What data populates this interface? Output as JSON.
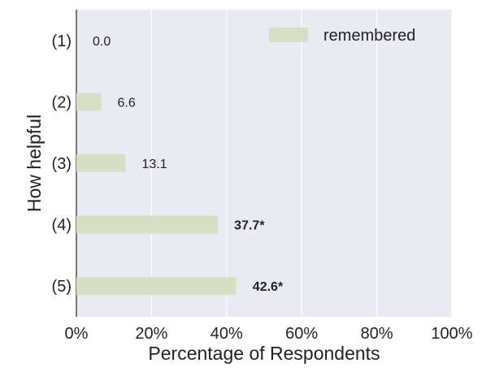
{
  "chart_data": {
    "type": "bar",
    "orientation": "horizontal",
    "categories": [
      "(1)",
      "(2)",
      "(3)",
      "(4)",
      "(5)"
    ],
    "series": [
      {
        "name": "remembered",
        "values": [
          0.0,
          6.6,
          13.1,
          37.7,
          42.6
        ],
        "labels": [
          "0.0",
          "6.6",
          "13.1",
          "37.7*",
          "42.6*"
        ],
        "bold": [
          false,
          false,
          false,
          true,
          true
        ]
      }
    ],
    "xlabel": "Percentage of Respondents",
    "ylabel": "How helpful",
    "xlim": [
      0,
      100
    ],
    "xticks": [
      {
        "value": 0,
        "label": "0%"
      },
      {
        "value": 20,
        "label": "20%"
      },
      {
        "value": 40,
        "label": "40%"
      },
      {
        "value": 60,
        "label": "60%"
      },
      {
        "value": 80,
        "label": "80%"
      },
      {
        "value": 100,
        "label": "100%"
      }
    ],
    "grid": "vertical",
    "legend_position": "top-right",
    "colors": {
      "background": "#eaeaf2",
      "bar": "#d7dfc4",
      "grid": "#ffffff",
      "axis": "#222222"
    }
  }
}
